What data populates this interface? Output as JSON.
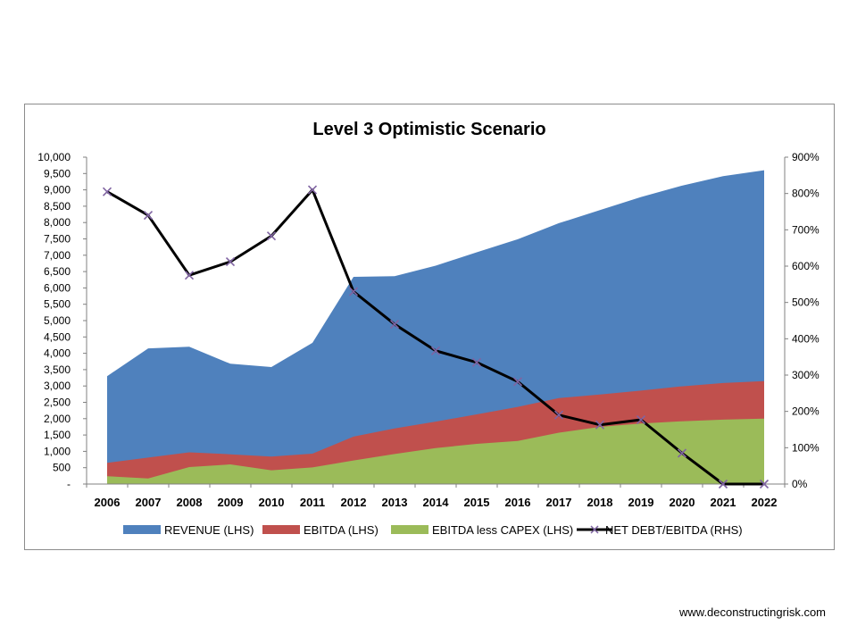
{
  "footer": {
    "url": "www.deconstructingrisk.com"
  },
  "chart_data": {
    "type": "area",
    "title": "Level 3 Optimistic Scenario",
    "categories": [
      "2006",
      "2007",
      "2008",
      "2009",
      "2010",
      "2011",
      "2012",
      "2013",
      "2014",
      "2015",
      "2016",
      "2017",
      "2018",
      "2019",
      "2020",
      "2021",
      "2022"
    ],
    "left_axis": {
      "ylim": [
        0,
        10000
      ],
      "ticks": [
        0,
        500,
        1000,
        1500,
        2000,
        2500,
        3000,
        3500,
        4000,
        4500,
        5000,
        5500,
        6000,
        6500,
        7000,
        7500,
        8000,
        8500,
        9000,
        9500,
        10000
      ],
      "tick_labels": [
        "-",
        "500",
        "1,000",
        "1,500",
        "2,000",
        "2,500",
        "3,000",
        "3,500",
        "4,000",
        "4,500",
        "5,000",
        "5,500",
        "6,000",
        "6,500",
        "7,000",
        "7,500",
        "8,000",
        "8,500",
        "9,000",
        "9,500",
        "10,000"
      ]
    },
    "right_axis": {
      "ylim": [
        0,
        900
      ],
      "ticks": [
        0,
        100,
        200,
        300,
        400,
        500,
        600,
        700,
        800,
        900
      ],
      "tick_labels": [
        "0%",
        "100%",
        "200%",
        "300%",
        "400%",
        "500%",
        "600%",
        "700%",
        "800%",
        "900%"
      ]
    },
    "series": [
      {
        "name": "REVENUE (LHS)",
        "kind": "area",
        "axis": "left",
        "color": "#4f81bd",
        "values": [
          3300,
          4150,
          4200,
          3680,
          3580,
          4320,
          6340,
          6360,
          6680,
          7090,
          7490,
          7980,
          8380,
          8780,
          9130,
          9420,
          9600
        ]
      },
      {
        "name": "EBITDA (LHS)",
        "kind": "area",
        "axis": "left",
        "color": "#c0504d",
        "values": [
          650,
          810,
          970,
          910,
          840,
          930,
          1450,
          1700,
          1910,
          2130,
          2360,
          2630,
          2740,
          2860,
          2990,
          3090,
          3150
        ]
      },
      {
        "name": "EBITDA less CAPEX (LHS)",
        "kind": "area",
        "axis": "left",
        "color": "#9bbb59",
        "values": [
          240,
          170,
          520,
          600,
          420,
          510,
          720,
          920,
          1100,
          1230,
          1320,
          1570,
          1750,
          1850,
          1920,
          1970,
          2000
        ]
      },
      {
        "name": "NET DEBT/EBITDA (RHS)",
        "kind": "line",
        "axis": "right",
        "color": "#000000",
        "marker_color": "#8064a2",
        "values": [
          805,
          740,
          575,
          612,
          683,
          810,
          530,
          440,
          367,
          335,
          282,
          190,
          163,
          177,
          85,
          0,
          0
        ]
      }
    ],
    "legend_position": "bottom",
    "grid": false
  }
}
